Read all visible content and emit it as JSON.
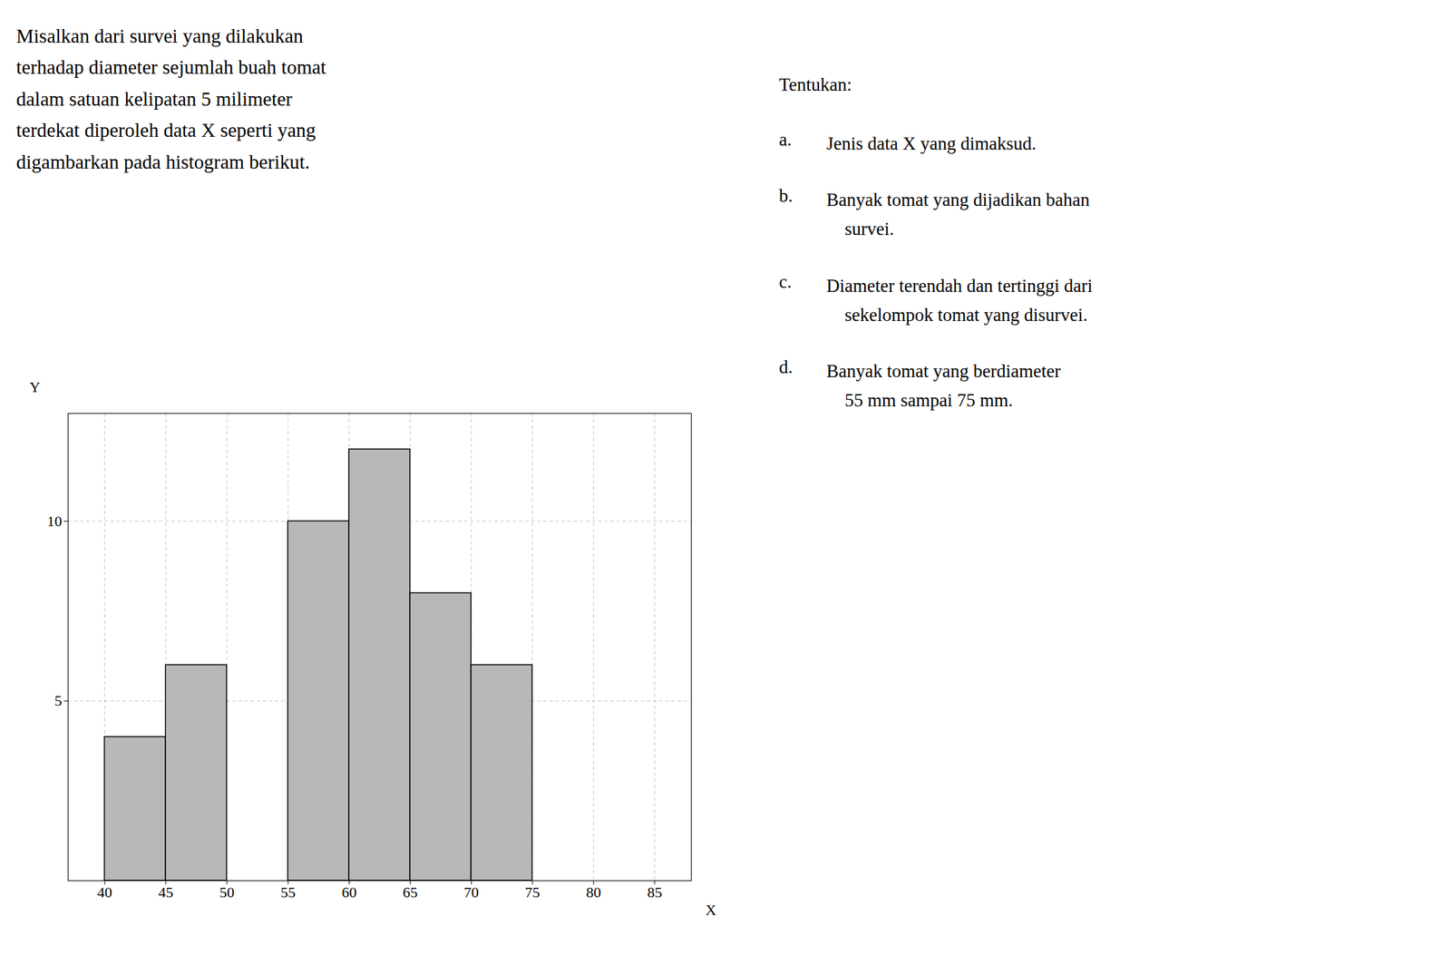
{
  "chart_data": {
    "type": "histogram",
    "bins": [
      40,
      45,
      50,
      55,
      60,
      65,
      70,
      75
    ],
    "values": [
      4,
      6,
      0,
      10,
      12,
      8,
      6
    ],
    "color": "#b8b8b8",
    "x_label": "X",
    "y_label": "Y",
    "xlim": [
      37,
      88
    ],
    "ylim": [
      0,
      13
    ],
    "xticks": [
      40,
      45,
      50,
      55,
      60,
      65,
      70,
      75,
      80,
      85
    ],
    "yticks": [
      5,
      10
    ],
    "grid": true,
    "paragraph": [
      "Misalkan dari survei yang dilakukan",
      "terhadap diameter sejumlah buah tomat",
      "dalam satuan kelipatan 5 milimeter",
      "terdekat diperoleh data X seperti yang",
      "digambarkan pada histogram berikut."
    ],
    "questions_title": "Tentukan:",
    "questions": [
      {
        "letter": "a.",
        "text": "Jenis data X yang dimaksud."
      },
      {
        "letter": "b.",
        "text": "Banyak tomat yang dijadikan bahan\n    survei."
      },
      {
        "letter": "c.",
        "text": "Diameter terendah dan tertinggi dari\n    sekelompok tomat yang disurvei."
      },
      {
        "letter": "d.",
        "text": "Banyak tomat yang berdiameter\n    55 mm sampai 75 mm."
      }
    ]
  }
}
